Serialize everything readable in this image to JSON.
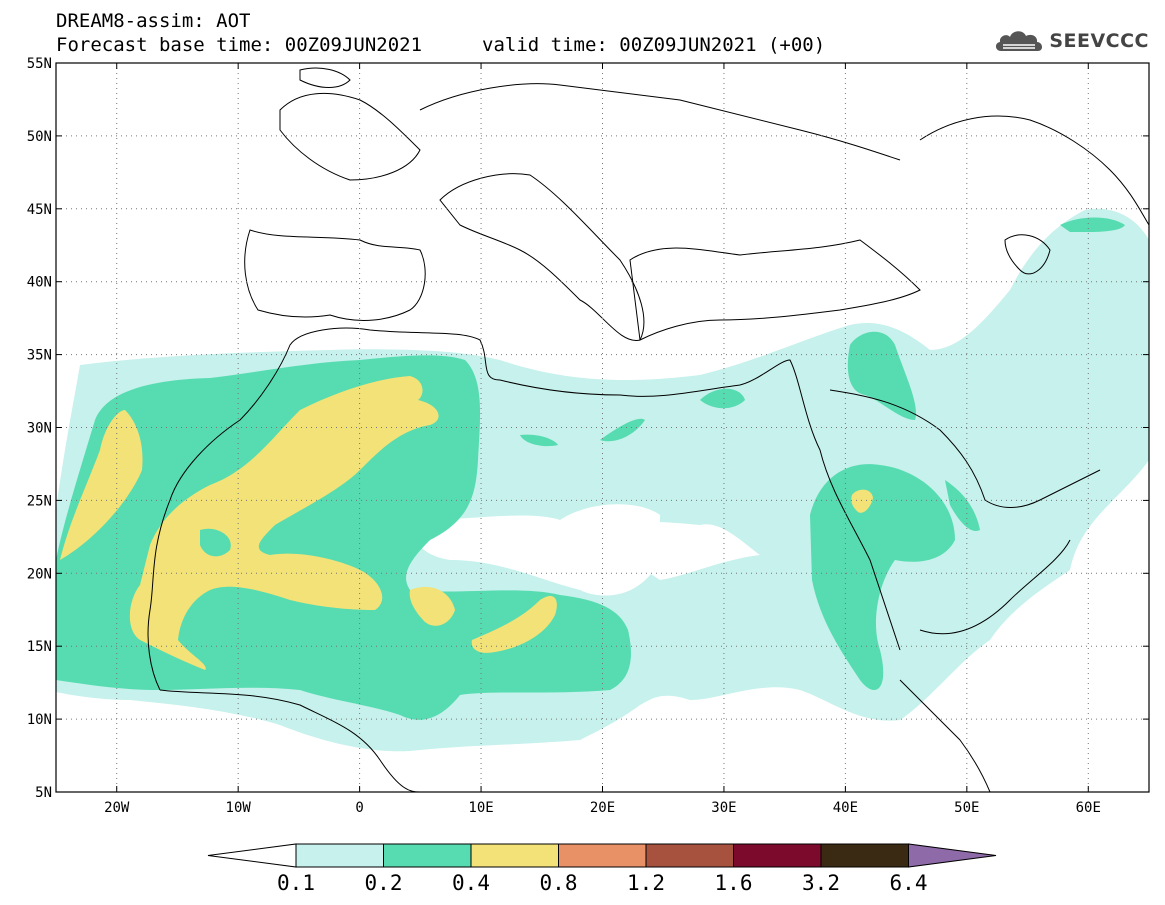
{
  "header": {
    "title": "DREAM8-assim: AOT",
    "base_time_label": "Forecast base time: 00Z09JUN2021",
    "valid_time_label": "valid time: 00Z09JUN2021 (+00)"
  },
  "logo": {
    "text": "SEEVCCC",
    "icon": "cloud-logo-icon"
  },
  "map": {
    "lon_range": [
      -25,
      65
    ],
    "lat_range": [
      5,
      55
    ],
    "lon_ticks": [
      {
        "value": -20,
        "label": "20W"
      },
      {
        "value": -10,
        "label": "10W"
      },
      {
        "value": 0,
        "label": "0"
      },
      {
        "value": 10,
        "label": "10E"
      },
      {
        "value": 20,
        "label": "20E"
      },
      {
        "value": 30,
        "label": "30E"
      },
      {
        "value": 40,
        "label": "40E"
      },
      {
        "value": 50,
        "label": "50E"
      },
      {
        "value": 60,
        "label": "60E"
      }
    ],
    "lat_ticks": [
      {
        "value": 5,
        "label": "5N"
      },
      {
        "value": 10,
        "label": "10N"
      },
      {
        "value": 15,
        "label": "15N"
      },
      {
        "value": 20,
        "label": "20N"
      },
      {
        "value": 25,
        "label": "25N"
      },
      {
        "value": 30,
        "label": "30N"
      },
      {
        "value": 35,
        "label": "35N"
      },
      {
        "value": 40,
        "label": "40N"
      },
      {
        "value": 45,
        "label": "45N"
      },
      {
        "value": 50,
        "label": "50N"
      },
      {
        "value": 55,
        "label": "55N"
      }
    ],
    "grid": "dotted"
  },
  "legend": {
    "labels": [
      "0.1",
      "0.2",
      "0.4",
      "0.8",
      "1.2",
      "1.6",
      "3.2",
      "6.4"
    ],
    "colors": [
      "#ffffff",
      "#c6f1ec",
      "#56dcb0",
      "#f2e277",
      "#e89066",
      "#a6523f",
      "#7c0a2c",
      "#3a2a14",
      "#8e6aa8"
    ]
  }
}
